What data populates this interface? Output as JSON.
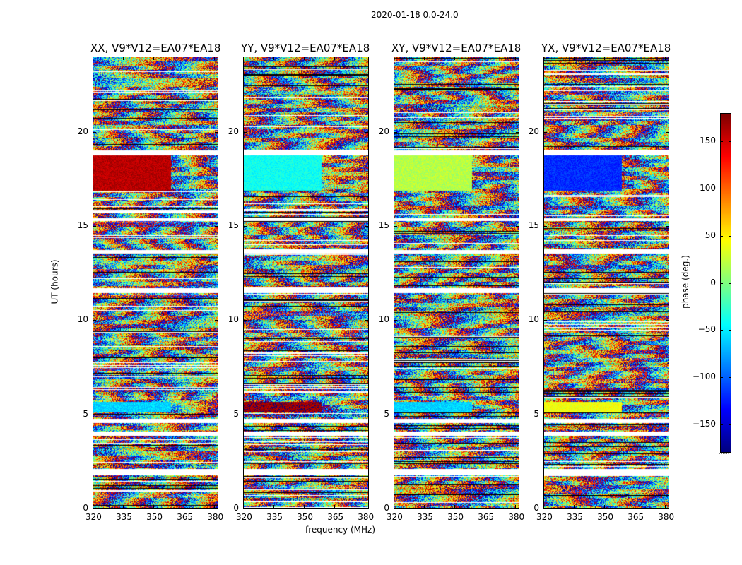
{
  "chart_data": {
    "type": "heatmap",
    "suptitle": "2020-01-18 0.0-24.0",
    "panels": [
      {
        "id": "xx",
        "title": "XX, V9*V12=EA07*EA18"
      },
      {
        "id": "yy",
        "title": "YY, V9*V12=EA07*EA18"
      },
      {
        "id": "xy",
        "title": "XY, V9*V12=EA07*EA18"
      },
      {
        "id": "yx",
        "title": "YX, V9*V12=EA07*EA18"
      }
    ],
    "xlabel": "frequency (MHz)",
    "ylabel": "UT (hours)",
    "xlim": [
      320,
      382
    ],
    "ylim": [
      0,
      24
    ],
    "xticks": [
      "320",
      "335",
      "350",
      "365",
      "380"
    ],
    "xtick_values": [
      320,
      335,
      350,
      365,
      380
    ],
    "yticks": [
      "0",
      "5",
      "10",
      "15",
      "20"
    ],
    "ytick_values": [
      0,
      5,
      10,
      15,
      20
    ],
    "flagged_rows_hours": [
      [
        1.75,
        2.1
      ],
      [
        3.85,
        4.1
      ],
      [
        4.55,
        4.75
      ],
      [
        13.55,
        13.75
      ],
      [
        11.45,
        11.7
      ],
      [
        18.8,
        19.05
      ],
      [
        15.3,
        15.45
      ]
    ],
    "coherent_rows_hours": [
      {
        "range": [
          16.9,
          18.85
        ],
        "xx": 160,
        "yy": -40,
        "xy": 20,
        "yx": -120
      },
      {
        "range": [
          5.1,
          5.65
        ],
        "xx": -60,
        "yy": 170,
        "xy": -60,
        "yx": 40
      }
    ],
    "colorbar": {
      "label": "phase (deg.)",
      "range": [
        -180,
        180
      ],
      "ticks": [
        "150",
        "100",
        "50",
        "0",
        "−50",
        "−100",
        "−150"
      ],
      "tick_values": [
        150,
        100,
        50,
        0,
        -50,
        -100,
        -150
      ],
      "colormap": "jet",
      "footnote": "......"
    }
  }
}
